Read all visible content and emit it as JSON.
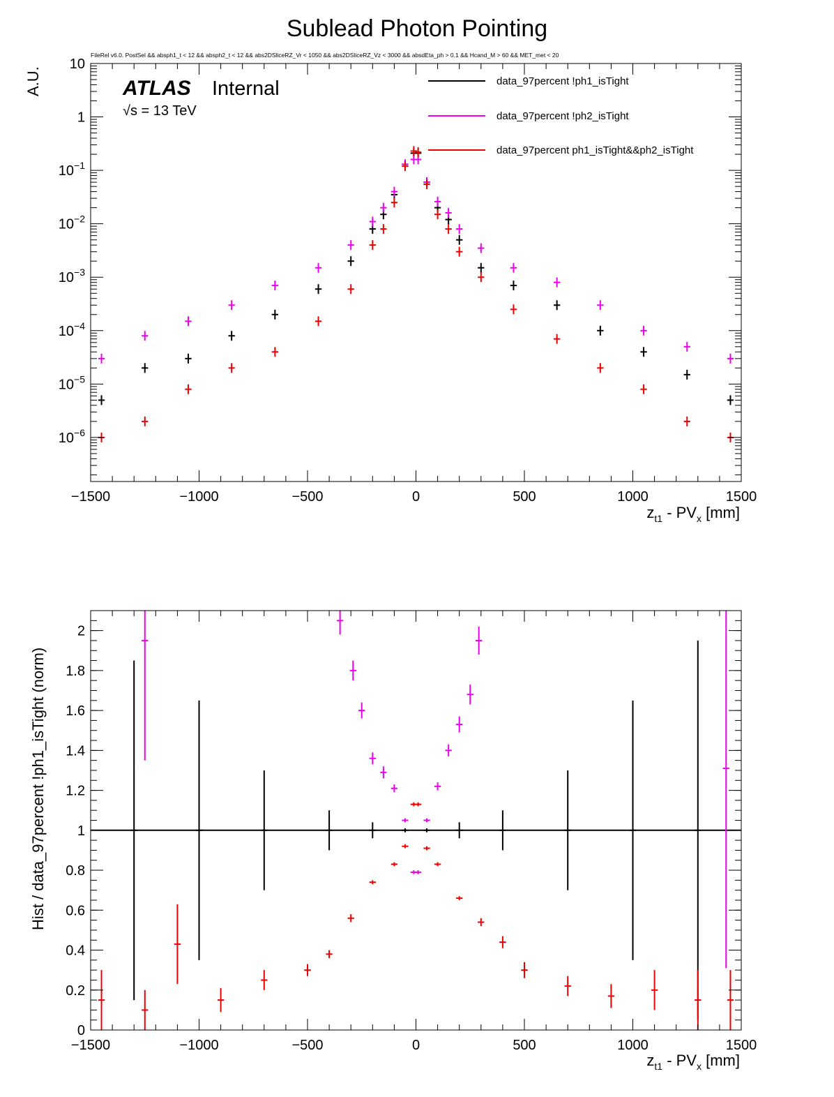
{
  "title": "Sublead Photon Pointing",
  "selection": "FileRel v6.0. PostSel &&  absph1_t < 12 && absph2_t < 12 && abs2DSliceRZ_Vr < 1050 && abs2DSliceRZ_Vz < 3000 && absdEta_ph > 0.1 && Hcand_M > 60 && MET_met < 20",
  "atlas_label": "ATLAS",
  "internal_label": "Internal",
  "energy_label": "√s = 13 TeV",
  "legend": {
    "entries": [
      {
        "label": "data_97percent !ph1_isTight",
        "color": "#000000"
      },
      {
        "label": "data_97percent !ph2_isTight",
        "color": "#ee00ee"
      },
      {
        "label": "data_97percent ph1_isTight&&ph2_isTight",
        "color": "#ee0000"
      }
    ]
  },
  "chart_data": [
    {
      "type": "scatter",
      "panel": "top",
      "xlabel_parts": [
        "z",
        "t1",
        " - PV",
        "x",
        " [mm]"
      ],
      "ylabel": "A.U.",
      "xlim": [
        -1500,
        1500
      ],
      "ylim": [
        1.5e-07,
        10
      ],
      "yscale": "log",
      "x_ticks": [
        -1500,
        -1000,
        -500,
        0,
        500,
        1000,
        1500
      ],
      "x_tick_labels": [
        "−1500",
        "−1000",
        "−500",
        "0",
        "500",
        "1000",
        "1500"
      ],
      "y_ticks": [
        1e-06,
        1e-05,
        0.0001,
        0.001,
        0.01,
        0.1,
        1,
        10
      ],
      "y_tick_labels": [
        {
          "base": "10",
          "exp": "−6"
        },
        {
          "base": "10",
          "exp": "−5"
        },
        {
          "base": "10",
          "exp": "−4"
        },
        {
          "base": "10",
          "exp": "−3"
        },
        {
          "base": "10",
          "exp": "−2"
        },
        {
          "base": "10",
          "exp": "−1"
        },
        {
          "base": "1",
          "exp": ""
        },
        {
          "base": "10",
          "exp": ""
        }
      ],
      "bin_width": 30,
      "series": [
        {
          "name": "data_97percent !ph1_isTight",
          "color": "#000000",
          "x": [
            -1450,
            -1250,
            -1050,
            -850,
            -650,
            -450,
            -300,
            -200,
            -150,
            -100,
            -50,
            -10,
            10,
            50,
            100,
            150,
            200,
            300,
            450,
            650,
            850,
            1050,
            1250,
            1450
          ],
          "y": [
            5e-06,
            2e-05,
            3e-05,
            8e-05,
            0.0002,
            0.0006,
            0.002,
            0.008,
            0.015,
            0.035,
            0.13,
            0.21,
            0.21,
            0.06,
            0.02,
            0.012,
            0.005,
            0.0015,
            0.0007,
            0.0003,
            0.0001,
            4e-05,
            1.5e-05,
            5e-06
          ]
        },
        {
          "name": "data_97percent !ph2_isTight",
          "color": "#ee00ee",
          "x": [
            -1450,
            -1250,
            -1050,
            -850,
            -650,
            -450,
            -300,
            -200,
            -150,
            -100,
            -50,
            -10,
            10,
            50,
            100,
            150,
            200,
            300,
            450,
            650,
            850,
            1050,
            1250,
            1450
          ],
          "y": [
            3e-05,
            8e-05,
            0.00015,
            0.0003,
            0.0007,
            0.0015,
            0.004,
            0.011,
            0.02,
            0.04,
            0.13,
            0.16,
            0.16,
            0.06,
            0.026,
            0.016,
            0.008,
            0.0035,
            0.0015,
            0.0008,
            0.0003,
            0.0001,
            5e-05,
            3e-05
          ]
        },
        {
          "name": "data_97percent ph1_isTight&&ph2_isTight",
          "color": "#ee0000",
          "x": [
            -1450,
            -1250,
            -1050,
            -850,
            -650,
            -450,
            -300,
            -200,
            -150,
            -100,
            -50,
            -10,
            10,
            50,
            100,
            150,
            200,
            300,
            450,
            650,
            850,
            1050,
            1250,
            1450
          ],
          "y": [
            1e-06,
            2e-06,
            8e-06,
            2e-05,
            4e-05,
            0.00015,
            0.0006,
            0.004,
            0.008,
            0.025,
            0.12,
            0.23,
            0.22,
            0.055,
            0.015,
            0.008,
            0.003,
            0.001,
            0.00025,
            7e-05,
            2e-05,
            8e-06,
            2e-06,
            1e-06
          ]
        }
      ]
    },
    {
      "type": "scatter",
      "panel": "bottom",
      "xlabel_parts": [
        "z",
        "t1",
        " - PV",
        "x",
        " [mm]"
      ],
      "ylabel": "Hist / data_97percent !ph1_isTight (norm)",
      "xlim": [
        -1500,
        1500
      ],
      "ylim": [
        0,
        2.1
      ],
      "x_ticks": [
        -1500,
        -1000,
        -500,
        0,
        500,
        1000,
        1500
      ],
      "x_tick_labels": [
        "−1500",
        "−1000",
        "−500",
        "0",
        "500",
        "1000",
        "1500"
      ],
      "y_ticks": [
        0,
        0.2,
        0.4,
        0.6,
        0.8,
        1,
        1.2,
        1.4,
        1.6,
        1.8,
        2
      ],
      "y_tick_labels": [
        "0",
        "0.2",
        "0.4",
        "0.6",
        "0.8",
        "1",
        "1.2",
        "1.4",
        "1.6",
        "1.8",
        "2"
      ],
      "bin_width": 30,
      "reference_line": 1,
      "series": [
        {
          "name": "data_97percent !ph1_isTight",
          "color": "#000000",
          "x": [
            -1300,
            -1000,
            -700,
            -400,
            -200,
            -50,
            50,
            200,
            400,
            700,
            1000,
            1300
          ],
          "y": [
            1,
            1,
            1,
            1,
            1,
            1,
            1,
            1,
            1,
            1,
            1,
            1
          ],
          "err": [
            0.85,
            0.65,
            0.3,
            0.1,
            0.04,
            0.01,
            0.01,
            0.04,
            0.1,
            0.3,
            0.65,
            0.95
          ]
        },
        {
          "name": "data_97percent !ph2_isTight",
          "color": "#ee00ee",
          "x": [
            -1250,
            -350,
            -290,
            -250,
            -200,
            -150,
            -100,
            -50,
            -10,
            10,
            50,
            100,
            150,
            200,
            250,
            290,
            1430
          ],
          "y": [
            1.95,
            2.05,
            1.8,
            1.6,
            1.36,
            1.29,
            1.21,
            1.05,
            0.79,
            0.79,
            1.05,
            1.22,
            1.4,
            1.53,
            1.68,
            1.95,
            1.31
          ],
          "err": [
            0.6,
            0.07,
            0.05,
            0.04,
            0.03,
            0.03,
            0.02,
            0.01,
            0.01,
            0.01,
            0.01,
            0.02,
            0.03,
            0.04,
            0.05,
            0.07,
            1.0
          ]
        },
        {
          "name": "data_97percent ph1_isTight&&ph2_isTight",
          "color": "#ee0000",
          "x": [
            -1450,
            -1250,
            -1100,
            -900,
            -700,
            -500,
            -400,
            -300,
            -200,
            -100,
            -50,
            -10,
            10,
            50,
            100,
            200,
            300,
            400,
            500,
            700,
            900,
            1100,
            1300,
            1450
          ],
          "y": [
            0.15,
            0.1,
            0.43,
            0.15,
            0.25,
            0.3,
            0.38,
            0.56,
            0.74,
            0.83,
            0.92,
            1.13,
            1.13,
            0.91,
            0.83,
            0.66,
            0.54,
            0.44,
            0.3,
            0.22,
            0.17,
            0.2,
            0.15,
            0.15
          ],
          "err": [
            0.15,
            0.1,
            0.2,
            0.06,
            0.05,
            0.03,
            0.02,
            0.02,
            0.01,
            0.01,
            0.01,
            0.01,
            0.01,
            0.01,
            0.01,
            0.01,
            0.02,
            0.03,
            0.04,
            0.05,
            0.06,
            0.1,
            0.15,
            0.15
          ]
        }
      ]
    }
  ]
}
